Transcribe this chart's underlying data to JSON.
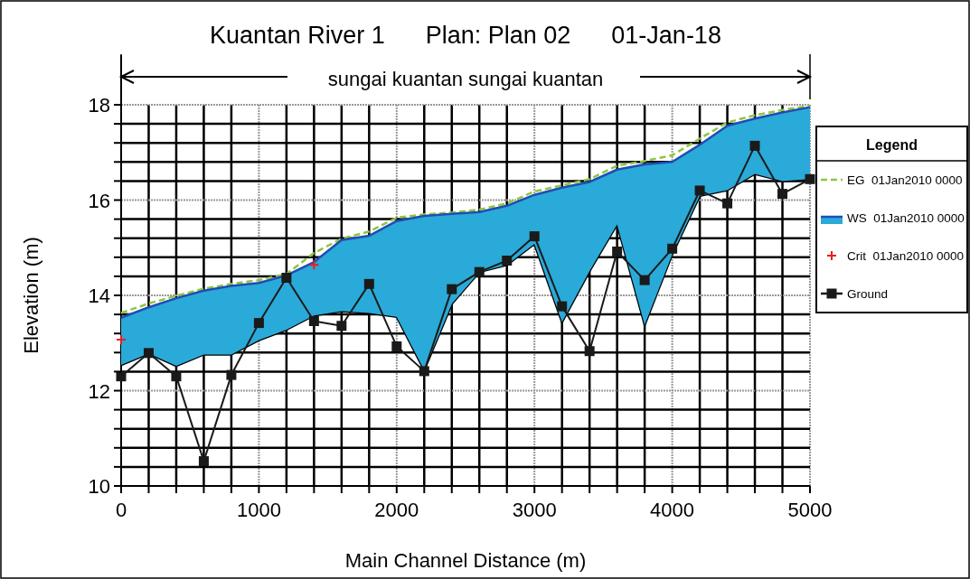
{
  "chart_data": {
    "type": "line",
    "title": "Kuantan River 1      Plan: Plan 02      01-Jan-18",
    "xlabel": "Main Channel Distance (m)",
    "ylabel": "Elevation (m)",
    "legend_title": "Legend",
    "annotations": [
      "sungai kuantan sungai kuantan"
    ],
    "x": [
      0,
      200,
      400,
      600,
      800,
      1000,
      1200,
      1400,
      1600,
      1800,
      2000,
      2200,
      2400,
      2600,
      2800,
      3000,
      3200,
      3400,
      3600,
      3800,
      4000,
      4200,
      4400,
      4600,
      4800,
      5000
    ],
    "series": [
      {
        "color": "#000000",
        "marker": "none",
        "values": [
          12.54,
          12.78,
          12.52,
          12.76,
          12.76,
          13.06,
          13.28,
          13.58,
          13.67,
          13.63,
          13.55,
          12.43,
          13.82,
          14.49,
          14.64,
          15.08,
          13.44,
          14.51,
          15.49,
          13.38,
          14.86,
          16.09,
          16.21,
          16.55,
          16.4,
          16.44
        ]
      },
      {
        "name": "EG  01Jan2010 0000",
        "color": "#8dc63f",
        "line_style": "dashed",
        "marker": "none",
        "values": [
          13.63,
          13.83,
          13.99,
          14.14,
          14.24,
          14.32,
          14.45,
          14.89,
          15.19,
          15.34,
          15.63,
          15.7,
          15.74,
          15.8,
          15.93,
          16.18,
          16.31,
          16.44,
          16.72,
          16.82,
          16.94,
          17.29,
          17.63,
          17.78,
          17.89,
          17.98
        ]
      },
      {
        "name": "WS  01Jan2010 0000",
        "type": "area",
        "color": "#2aaad8",
        "marker": "none",
        "values": [
          13.53,
          13.75,
          13.94,
          14.1,
          14.2,
          14.26,
          14.42,
          14.7,
          15.16,
          15.25,
          15.56,
          15.67,
          15.71,
          15.75,
          15.88,
          16.11,
          16.26,
          16.38,
          16.64,
          16.75,
          16.8,
          17.16,
          17.56,
          17.71,
          17.84,
          17.95
        ]
      },
      {
        "name": "Crit  01Jan2010 0000",
        "type": "scatter",
        "color": "#e8201e",
        "marker": "cross",
        "x": [
          0,
          1400
        ],
        "values": [
          13.07,
          14.64
        ]
      },
      {
        "name": "Ground",
        "color": "#1a1a1a",
        "marker": "square",
        "values": [
          12.3,
          12.79,
          12.3,
          10.52,
          12.33,
          13.42,
          14.37,
          13.46,
          13.36,
          14.24,
          12.93,
          12.41,
          14.13,
          14.49,
          14.73,
          15.24,
          13.77,
          12.83,
          14.92,
          14.32,
          14.98,
          16.2,
          15.93,
          17.14,
          16.13,
          16.44
        ]
      }
    ],
    "xlim": [
      0,
      5000
    ],
    "ylim": [
      10,
      18
    ],
    "xticks": [
      0,
      {
        "value": 200,
        "label": null
      },
      {
        "value": 400,
        "label": null
      },
      {
        "value": 600,
        "label": null
      },
      {
        "value": 800,
        "label": null
      },
      1000,
      {
        "value": 1200,
        "label": null
      },
      {
        "value": 1400,
        "label": null
      },
      {
        "value": 1600,
        "label": null
      },
      {
        "value": 1800,
        "label": null
      },
      2000,
      {
        "value": 2200,
        "label": null
      },
      {
        "value": 2400,
        "label": null
      },
      {
        "value": 2600,
        "label": null
      },
      {
        "value": 2800,
        "label": null
      },
      3000,
      {
        "value": 3200,
        "label": null
      },
      {
        "value": 3400,
        "label": null
      },
      {
        "value": 3600,
        "label": null
      },
      {
        "value": 3800,
        "label": null
      },
      4000,
      {
        "value": 4200,
        "label": null
      },
      {
        "value": 4400,
        "label": null
      },
      {
        "value": 4600,
        "label": null
      },
      {
        "value": 4800,
        "label": null
      },
      5000
    ],
    "yticks": [
      10,
      {
        "value": 10.4,
        "label": null
      },
      {
        "value": 10.8,
        "label": null
      },
      {
        "value": 11.2,
        "label": null
      },
      {
        "value": 11.6,
        "label": null
      },
      12,
      {
        "value": 12.4,
        "label": null
      },
      {
        "value": 12.8,
        "label": null
      },
      {
        "value": 13.2,
        "label": null
      },
      {
        "value": 13.6,
        "label": null
      },
      14,
      {
        "value": 14.4,
        "label": null
      },
      {
        "value": 14.8,
        "label": null
      },
      {
        "value": 15.2,
        "label": null
      },
      {
        "value": 15.6,
        "label": null
      },
      16,
      {
        "value": 16.4,
        "label": null
      },
      {
        "value": 16.8,
        "label": null
      },
      {
        "value": 17.2,
        "label": null
      },
      {
        "value": 17.6,
        "label": null
      },
      18
    ],
    "grid": true,
    "legend": "right"
  }
}
